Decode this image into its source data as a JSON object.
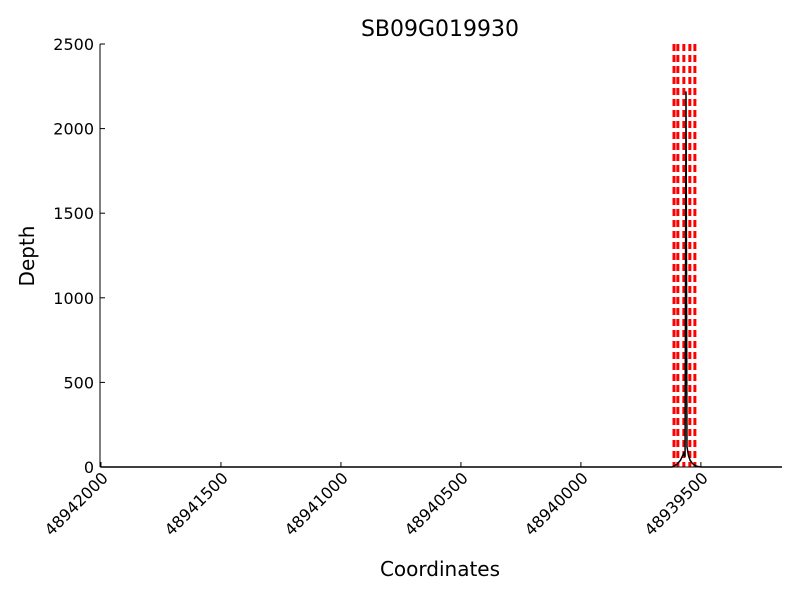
{
  "chart_data": {
    "type": "line",
    "title": "SB09G019930",
    "x_label": "Coordinates",
    "y_label": "Depth",
    "x": [
      48942000,
      48940000,
      48939620,
      48939600,
      48939585,
      48939572,
      48939566,
      48939562,
      48939558,
      48939552,
      48939545,
      48939535,
      48939520,
      48939500,
      48939300,
      48939162
    ],
    "values": [
      0,
      0,
      0,
      15,
      40,
      80,
      60,
      2220,
      120,
      70,
      40,
      20,
      5,
      0,
      0,
      0
    ],
    "color": "#000000",
    "vlines": {
      "color": "#ff0000",
      "x": [
        48939612,
        48939596,
        48939571,
        48939546,
        48939525
      ]
    },
    "xlim": [
      48942004,
      48939162
    ],
    "xticks": [
      48942000,
      48941500,
      48941000,
      48940500,
      48940000,
      48939500
    ],
    "ylim": [
      0,
      2500
    ],
    "yticks": [
      0,
      500,
      1000,
      1500,
      2000,
      2500
    ]
  }
}
